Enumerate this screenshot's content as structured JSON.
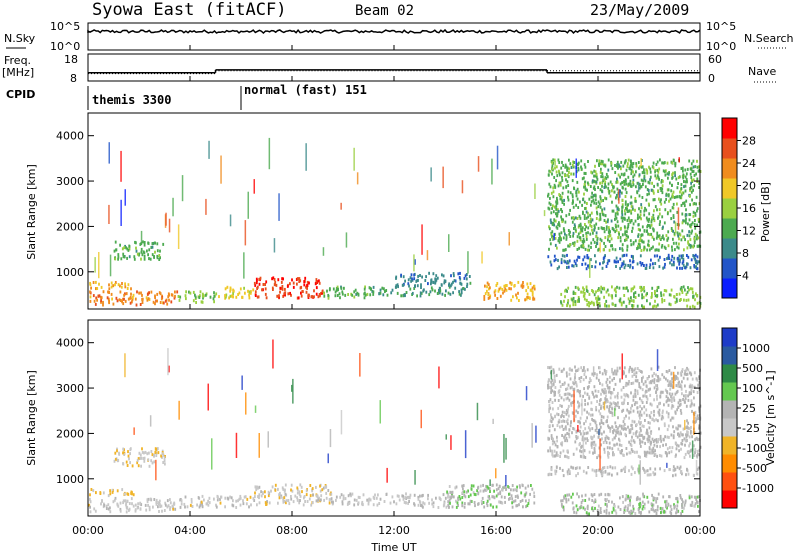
{
  "header": {
    "title": "Syowa East (fitACF)",
    "beam": "Beam 02",
    "date": "23/May/2009"
  },
  "top_panels": {
    "nsky_label": "N.Sky",
    "nsearch_label": "N.Search",
    "nsky_ticks": [
      "10^5",
      "10^0"
    ],
    "nsearch_ticks": [
      "10^5",
      "10^0"
    ],
    "freq_label_1": "Freq.",
    "freq_label_2": "[MHz]",
    "freq_ticks": [
      "18",
      "8"
    ],
    "nave_label": "Nave",
    "nave_ticks": [
      "60",
      "0"
    ],
    "cpid_label": "CPID",
    "cpid_segments": [
      {
        "label": "themis 3300",
        "start_hour": 0,
        "end_hour": 6
      },
      {
        "label": "normal (fast) 151",
        "start_hour": 6,
        "end_hour": 24
      }
    ],
    "freq_steps": [
      {
        "start_hour": 0,
        "end_hour": 5,
        "mhz": 11.0
      },
      {
        "start_hour": 5,
        "end_hour": 6,
        "mhz": 12.2
      },
      {
        "start_hour": 6,
        "end_hour": 18,
        "mhz": 12.2
      },
      {
        "start_hour": 18,
        "end_hour": 24,
        "mhz": 11.0
      }
    ],
    "nave_dotted": [
      {
        "start_hour": 0,
        "end_hour": 5,
        "value": 16
      },
      {
        "start_hour": 5,
        "end_hour": 18,
        "value": 23
      },
      {
        "start_hour": 18,
        "end_hour": 24,
        "value": 23
      }
    ]
  },
  "colors": {
    "power_scale": [
      "#0a1eff",
      "#2255c8",
      "#3b8a8a",
      "#4caa50",
      "#9ad040",
      "#f0c828",
      "#f08c1e",
      "#e8501e",
      "#ff0000"
    ],
    "velocity_scale": [
      "#ff0000",
      "#ff5010",
      "#ff8c00",
      "#f0b428",
      "#c8c8c8",
      "#b4b4b4",
      "#64c850",
      "#2e8a46",
      "#2a5aa0",
      "#1e3cc8"
    ]
  },
  "chart_data": [
    {
      "type": "heatmap",
      "title": "Power",
      "ylabel": "Slant Range [km]",
      "xlabel": "Time UT",
      "colorbar_label": "Power [dB]",
      "colorbar_ticks": [
        "4",
        "8",
        "12",
        "16",
        "20",
        "24",
        "28"
      ],
      "clim": [
        0,
        30
      ],
      "xlim": [
        0,
        24
      ],
      "ylim": [
        180,
        4500
      ],
      "x_ticks": [
        "00:00",
        "04:00",
        "08:00",
        "12:00",
        "16:00",
        "20:00",
        "00:00"
      ],
      "y_ticks": [
        "1000",
        "2000",
        "3000",
        "4000"
      ],
      "regions": [
        {
          "t0": 0.0,
          "t1": 1.8,
          "r0": 650,
          "r1": 800,
          "value": 20
        },
        {
          "t0": 0.0,
          "t1": 3.5,
          "r0": 300,
          "r1": 600,
          "value": 22
        },
        {
          "t0": 1.0,
          "t1": 3.0,
          "r0": 1300,
          "r1": 1700,
          "value": 12
        },
        {
          "t0": 3.5,
          "t1": 5.0,
          "r0": 350,
          "r1": 600,
          "value": 14
        },
        {
          "t0": 5.0,
          "t1": 6.5,
          "r0": 450,
          "r1": 700,
          "value": 18
        },
        {
          "t0": 6.5,
          "t1": 9.2,
          "r0": 450,
          "r1": 900,
          "value": 26
        },
        {
          "t0": 9.2,
          "t1": 11.0,
          "r0": 450,
          "r1": 700,
          "value": 12
        },
        {
          "t0": 11.0,
          "t1": 14.8,
          "r0": 500,
          "r1": 700,
          "value": 10
        },
        {
          "t0": 12.0,
          "t1": 15.0,
          "r0": 700,
          "r1": 1000,
          "value": 8
        },
        {
          "t0": 15.5,
          "t1": 17.5,
          "r0": 400,
          "r1": 800,
          "value": 20
        },
        {
          "t0": 18.0,
          "t1": 24.0,
          "r0": 1100,
          "r1": 1400,
          "value": 6
        },
        {
          "t0": 18.5,
          "t1": 24.0,
          "r0": 250,
          "r1": 700,
          "value": 14
        },
        {
          "t0": 18.0,
          "t1": 24.0,
          "r0": 1500,
          "r1": 3500,
          "value": 12
        }
      ]
    },
    {
      "type": "heatmap",
      "title": "Velocity",
      "ylabel": "Slant Range [km]",
      "xlabel": "Time UT",
      "colorbar_label": "Velocity [m s^-1]",
      "colorbar_ticks": [
        "-1000",
        "-500",
        "-100",
        "-25",
        "25",
        "100",
        "500",
        "1000"
      ],
      "clim": [
        -1200,
        1200
      ],
      "xlim": [
        0,
        24
      ],
      "ylim": [
        180,
        4500
      ],
      "x_ticks": [
        "00:00",
        "04:00",
        "08:00",
        "12:00",
        "16:00",
        "20:00",
        "00:00"
      ],
      "y_ticks": [
        "1000",
        "2000",
        "3000",
        "4000"
      ],
      "regions": [
        {
          "t0": 0.0,
          "t1": 1.8,
          "r0": 650,
          "r1": 800,
          "value": -300
        },
        {
          "t0": 0.0,
          "t1": 3.5,
          "r0": 300,
          "r1": 600,
          "value": -80
        },
        {
          "t0": 1.0,
          "t1": 3.0,
          "r0": 1300,
          "r1": 1700,
          "value": -200
        },
        {
          "t0": 3.5,
          "t1": 6.5,
          "r0": 400,
          "r1": 650,
          "value": -80
        },
        {
          "t0": 6.5,
          "t1": 9.5,
          "r0": 450,
          "r1": 900,
          "value": -150
        },
        {
          "t0": 9.5,
          "t1": 12.5,
          "r0": 450,
          "r1": 700,
          "value": -60
        },
        {
          "t0": 12.5,
          "t1": 14.5,
          "r0": 400,
          "r1": 700,
          "value": 10
        },
        {
          "t0": 14.0,
          "t1": 17.5,
          "r0": 400,
          "r1": 900,
          "value": 150
        },
        {
          "t0": 18.0,
          "t1": 24.0,
          "r0": 1100,
          "r1": 1300,
          "value": 10
        },
        {
          "t0": 18.5,
          "t1": 24.0,
          "r0": 250,
          "r1": 700,
          "value": 150
        },
        {
          "t0": 18.0,
          "t1": 24.0,
          "r0": 1500,
          "r1": 3500,
          "value": 50
        }
      ]
    }
  ]
}
